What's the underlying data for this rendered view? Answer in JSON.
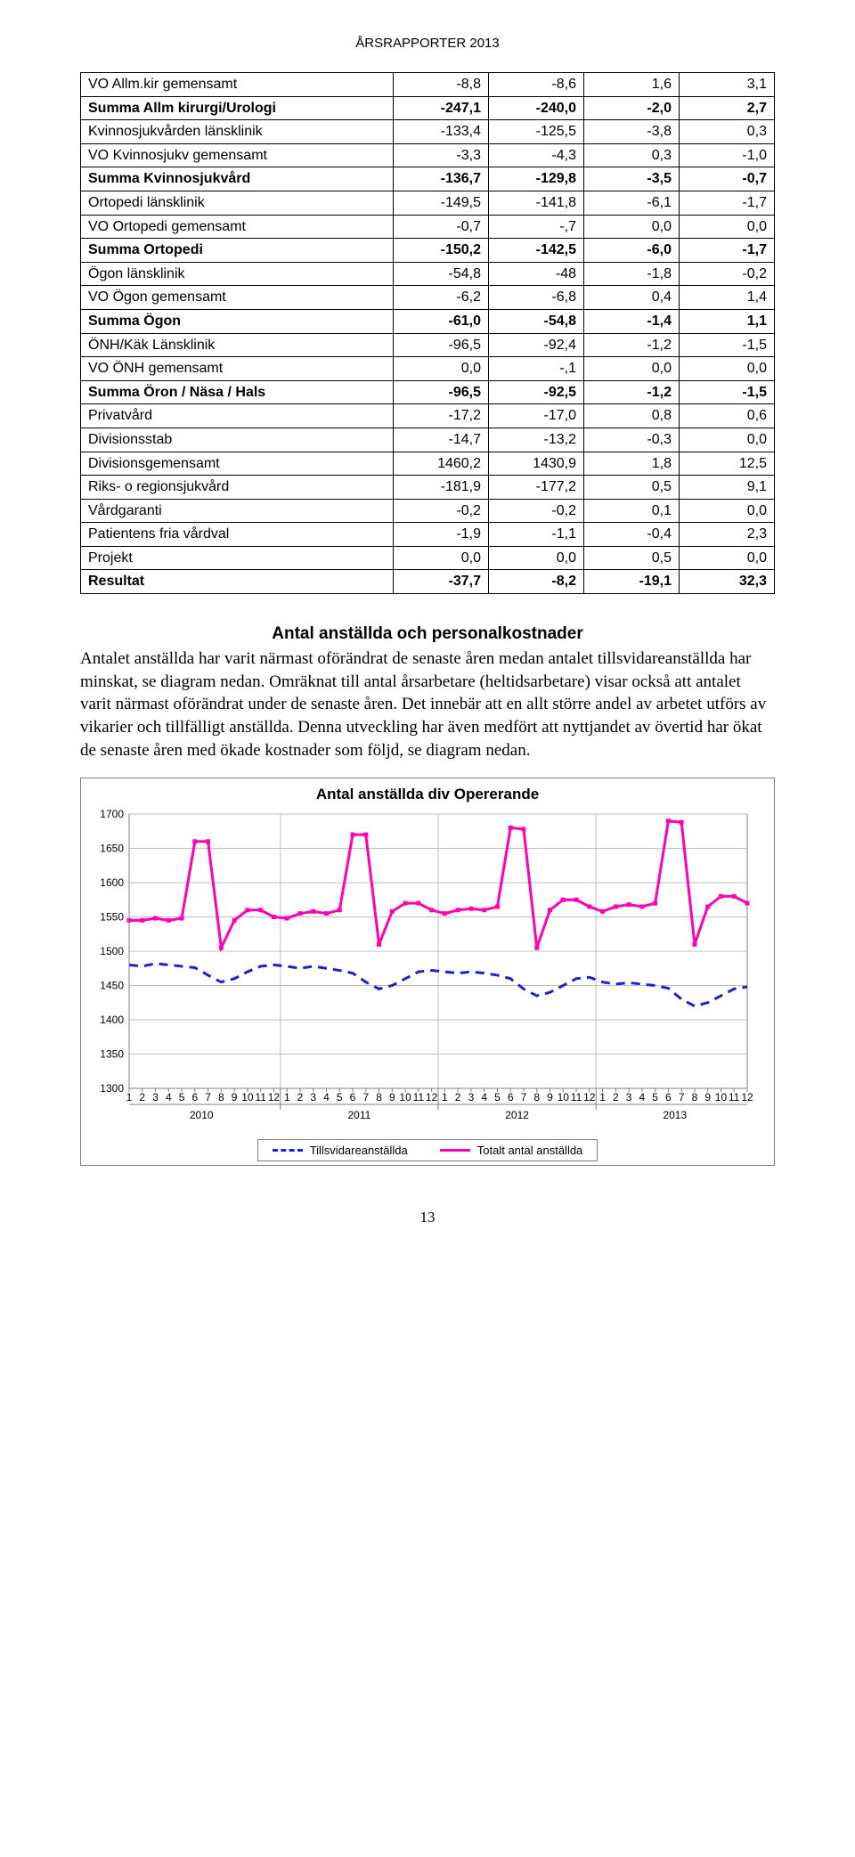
{
  "header": "ÅRSRAPPORTER 2013",
  "pagenum": "13",
  "table": {
    "rows": [
      {
        "bold": false,
        "label": "VO Allm.kir gemensamt",
        "c": [
          "-8,8",
          "-8,6",
          "1,6",
          "3,1"
        ]
      },
      {
        "bold": true,
        "label": "Summa Allm kirurgi/Urologi",
        "c": [
          "-247,1",
          "-240,0",
          "-2,0",
          "2,7"
        ]
      },
      {
        "bold": false,
        "label": "Kvinnosjukvården länsklinik",
        "c": [
          "-133,4",
          "-125,5",
          "-3,8",
          "0,3"
        ]
      },
      {
        "bold": false,
        "label": "VO Kvinnosjukv gemensamt",
        "c": [
          "-3,3",
          "-4,3",
          "0,3",
          "-1,0"
        ]
      },
      {
        "bold": true,
        "label": "Summa Kvinnosjukvård",
        "c": [
          "-136,7",
          "-129,8",
          "-3,5",
          "-0,7"
        ]
      },
      {
        "bold": false,
        "label": "Ortopedi länsklinik",
        "c": [
          "-149,5",
          "-141,8",
          "-6,1",
          "-1,7"
        ]
      },
      {
        "bold": false,
        "label": "VO Ortopedi gemensamt",
        "c": [
          "-0,7",
          "-,7",
          "0,0",
          "0,0"
        ]
      },
      {
        "bold": true,
        "label": "Summa Ortopedi",
        "c": [
          "-150,2",
          "-142,5",
          "-6,0",
          "-1,7"
        ]
      },
      {
        "bold": false,
        "label": "Ögon länsklinik",
        "c": [
          "-54,8",
          "-48",
          "-1,8",
          "-0,2"
        ]
      },
      {
        "bold": false,
        "label": "VO Ögon gemensamt",
        "c": [
          "-6,2",
          "-6,8",
          "0,4",
          "1,4"
        ]
      },
      {
        "bold": true,
        "label": "Summa Ögon",
        "c": [
          "-61,0",
          "-54,8",
          "-1,4",
          "1,1"
        ]
      },
      {
        "bold": false,
        "label": "ÖNH/Käk Länsklinik",
        "c": [
          "-96,5",
          "-92,4",
          "-1,2",
          "-1,5"
        ]
      },
      {
        "bold": false,
        "label": "VO ÖNH gemensamt",
        "c": [
          "0,0",
          "-,1",
          "0,0",
          "0,0"
        ]
      },
      {
        "bold": true,
        "label": "Summa Öron / Näsa / Hals",
        "c": [
          "-96,5",
          "-92,5",
          "-1,2",
          "-1,5"
        ]
      },
      {
        "bold": false,
        "label": "Privatvård",
        "c": [
          "-17,2",
          "-17,0",
          "0,8",
          "0,6"
        ]
      },
      {
        "bold": false,
        "label": "Divisionsstab",
        "c": [
          "-14,7",
          "-13,2",
          "-0,3",
          "0,0"
        ]
      },
      {
        "bold": false,
        "label": "Divisionsgemensamt",
        "c": [
          "1460,2",
          "1430,9",
          "1,8",
          "12,5"
        ]
      },
      {
        "bold": false,
        "label": "Riks- o regionsjukvård",
        "c": [
          "-181,9",
          "-177,2",
          "0,5",
          "9,1"
        ]
      },
      {
        "bold": false,
        "label": "Vårdgaranti",
        "c": [
          "-0,2",
          "-0,2",
          "0,1",
          "0,0"
        ]
      },
      {
        "bold": false,
        "label": "Patientens fria vårdval",
        "c": [
          "-1,9",
          "-1,1",
          "-0,4",
          "2,3"
        ]
      },
      {
        "bold": false,
        "label": "Projekt",
        "c": [
          "0,0",
          "0,0",
          "0,5",
          "0,0"
        ]
      },
      {
        "bold": true,
        "label": "Resultat",
        "c": [
          "-37,7",
          "-8,2",
          "-19,1",
          "32,3"
        ]
      }
    ]
  },
  "section_title": "Antal anställda och personalkostnader",
  "body_text": "Antalet anställda har varit närmast oförändrat de senaste åren medan antalet tillsvidareanställda har minskat, se diagram nedan. Omräknat till antal årsarbetare (heltidsarbetare) visar också att antalet varit närmast oförändrat under de senaste åren. Det innebär att en allt större andel av arbetet utförs av vikarier och tillfälligt anställda. Denna utveckling har även medfört att nyttjandet av övertid har ökat de senaste åren med ökade kostnader som följd, se diagram nedan.",
  "chart": {
    "type": "line",
    "title": "Antal anställda div Opererande",
    "ylim": [
      1300,
      1700
    ],
    "ytick_step": 50,
    "yticks": [
      "1300",
      "1350",
      "1400",
      "1450",
      "1500",
      "1550",
      "1600",
      "1650",
      "1700"
    ],
    "years": [
      "2010",
      "2011",
      "2012",
      "2013"
    ],
    "months": [
      "1",
      "2",
      "3",
      "4",
      "5",
      "6",
      "7",
      "8",
      "9",
      "10",
      "11",
      "12"
    ],
    "grid_color": "#bfbfbf",
    "background_color": "#ffffff",
    "axis_color": "#7f7f7f",
    "series": [
      {
        "name": "Tillsvidareanställda",
        "color": "#1f1fd1",
        "dash": true,
        "values": [
          1480,
          1478,
          1482,
          1480,
          1478,
          1476,
          1465,
          1455,
          1460,
          1470,
          1478,
          1480,
          1478,
          1475,
          1478,
          1475,
          1472,
          1468,
          1455,
          1445,
          1450,
          1460,
          1470,
          1472,
          1470,
          1468,
          1470,
          1468,
          1465,
          1460,
          1445,
          1435,
          1440,
          1450,
          1460,
          1462,
          1455,
          1452,
          1454,
          1452,
          1450,
          1446,
          1430,
          1420,
          1425,
          1435,
          1445,
          1448
        ]
      },
      {
        "name": "Totalt antal anställda",
        "color": "#ff00b3",
        "dash": false,
        "values": [
          1545,
          1545,
          1548,
          1545,
          1548,
          1660,
          1660,
          1505,
          1545,
          1560,
          1560,
          1550,
          1548,
          1555,
          1558,
          1555,
          1560,
          1670,
          1670,
          1510,
          1558,
          1570,
          1570,
          1560,
          1555,
          1560,
          1562,
          1560,
          1565,
          1680,
          1678,
          1505,
          1560,
          1575,
          1575,
          1565,
          1558,
          1565,
          1568,
          1565,
          1570,
          1690,
          1688,
          1510,
          1565,
          1580,
          1580,
          1570
        ]
      }
    ],
    "legend": {
      "items": [
        {
          "label": "Tillsvidareanställda",
          "color": "#1f1fd1",
          "dash": true
        },
        {
          "label": "Totalt antal anställda",
          "color": "#ff00b3",
          "dash": false
        }
      ]
    }
  }
}
